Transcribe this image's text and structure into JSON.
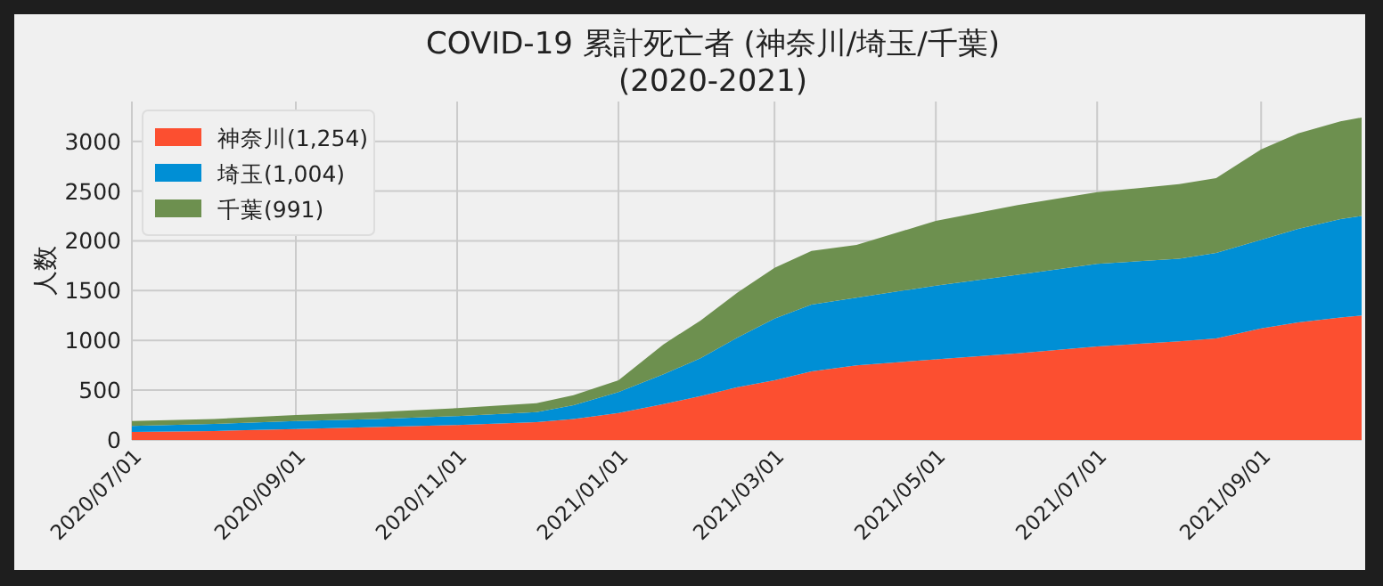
{
  "chart_data": {
    "type": "area",
    "title": "COVID-19 累計死亡者 (神奈川/埼玉/千葉)",
    "subtitle": "(2020-2021)",
    "ylabel": "人数",
    "stacked": true,
    "grid": true,
    "legend": "top left",
    "x": [
      "2020-07-01",
      "2020-08-01",
      "2020-09-01",
      "2020-10-01",
      "2020-11-01",
      "2020-12-01",
      "2020-12-15",
      "2021-01-01",
      "2021-01-18",
      "2021-02-01",
      "2021-02-15",
      "2021-03-01",
      "2021-03-15",
      "2021-04-01",
      "2021-05-01",
      "2021-06-01",
      "2021-07-01",
      "2021-08-01",
      "2021-08-15",
      "2021-09-01",
      "2021-09-15",
      "2021-10-01",
      "2021-10-09"
    ],
    "series": [
      {
        "name": "神奈川(1,254)",
        "color": "#fc4f30",
        "values": [
          80,
          90,
          110,
          130,
          150,
          180,
          210,
          270,
          360,
          440,
          530,
          600,
          690,
          750,
          810,
          870,
          940,
          990,
          1020,
          1120,
          1180,
          1230,
          1250
        ]
      },
      {
        "name": "埼玉(1,004)",
        "color": "#008fd5",
        "values": [
          60,
          70,
          80,
          80,
          90,
          100,
          140,
          210,
          300,
          380,
          500,
          620,
          670,
          680,
          740,
          790,
          830,
          830,
          860,
          890,
          940,
          990,
          1000
        ]
      },
      {
        "name": "千葉(991)",
        "color": "#6d904f",
        "values": [
          50,
          50,
          60,
          70,
          80,
          90,
          100,
          120,
          300,
          380,
          450,
          510,
          540,
          530,
          650,
          700,
          720,
          750,
          750,
          910,
          960,
          980,
          990
        ]
      }
    ],
    "xlim": [
      "2020-07-01",
      "2021-10-09"
    ],
    "ylim": [
      0,
      3400
    ],
    "xticks": [
      {
        "value": "2020-07-01",
        "label": "2020/07/01"
      },
      {
        "value": "2020-09-01",
        "label": "2020/09/01"
      },
      {
        "value": "2020-11-01",
        "label": "2020/11/01"
      },
      {
        "value": "2021-01-01",
        "label": "2021/01/01"
      },
      {
        "value": "2021-03-01",
        "label": "2021/03/01"
      },
      {
        "value": "2021-05-01",
        "label": "2021/05/01"
      },
      {
        "value": "2021-07-01",
        "label": "2021/07/01"
      },
      {
        "value": "2021-09-01",
        "label": "2021/09/01"
      }
    ],
    "yticks": [
      0,
      500,
      1000,
      1500,
      2000,
      2500,
      3000
    ]
  }
}
